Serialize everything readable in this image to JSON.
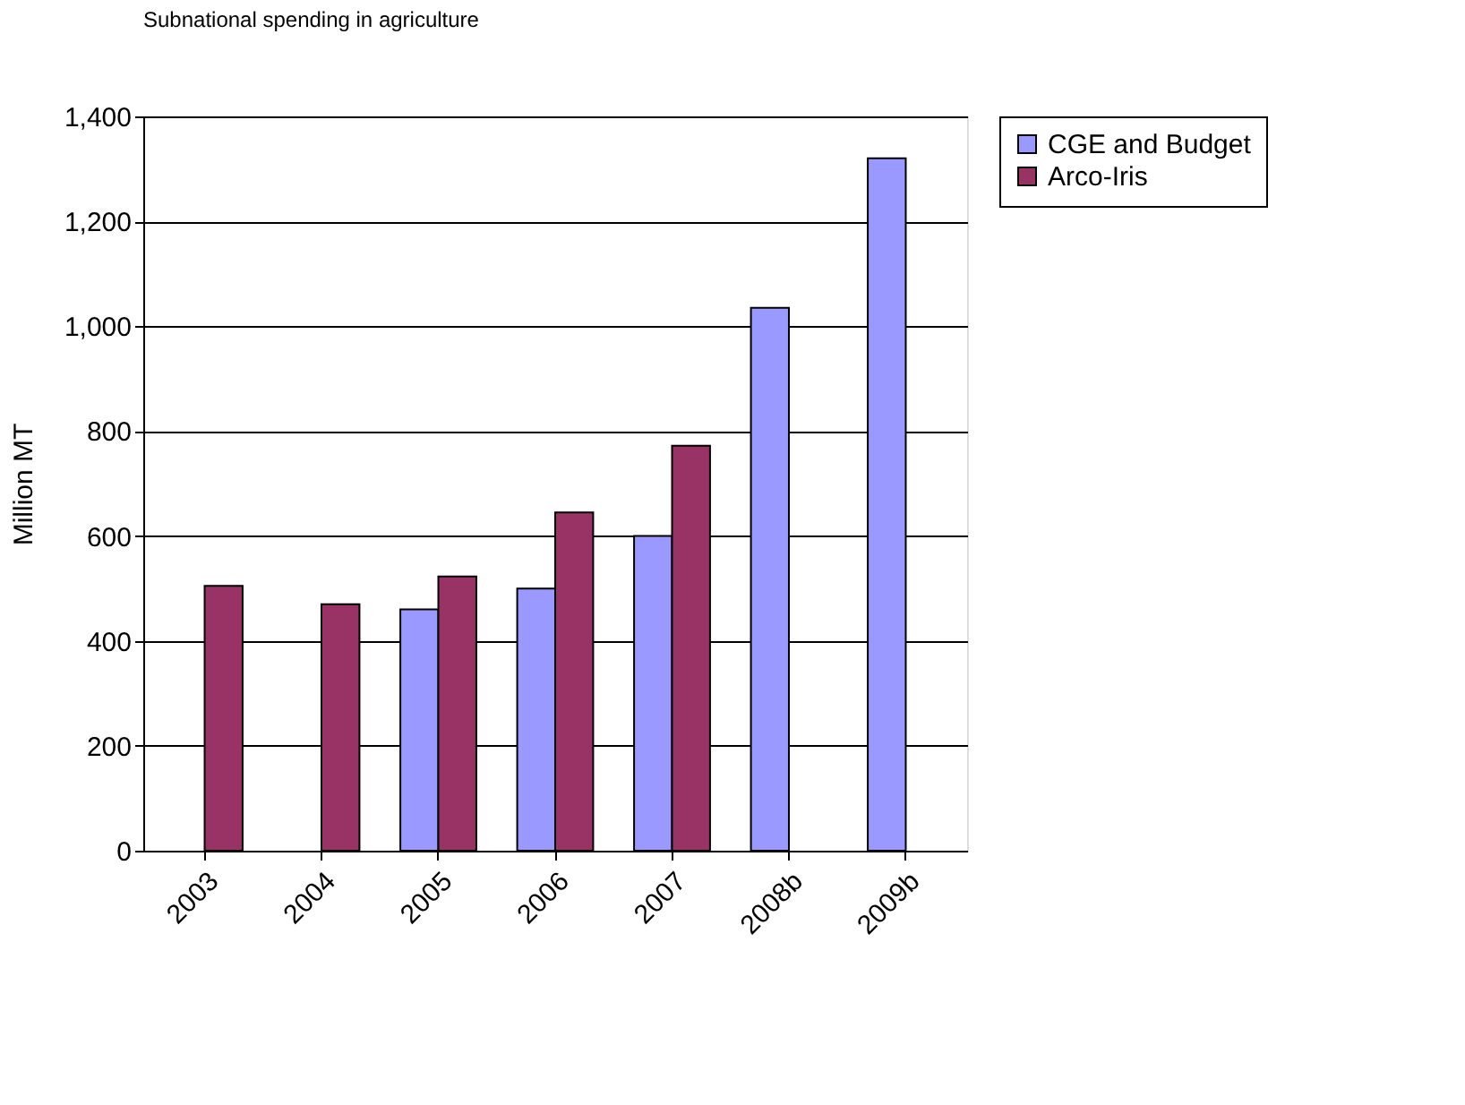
{
  "chart_data": {
    "type": "bar",
    "title": "Subnational spending in agriculture",
    "ylabel": "Million MT",
    "categories": [
      "2003",
      "2004",
      "2005",
      "2006",
      "2007",
      "2008b",
      "2009b"
    ],
    "series": [
      {
        "name": "CGE and Budget",
        "color": "#9999ff",
        "values": [
          null,
          null,
          460,
          500,
          600,
          1035,
          1320
        ]
      },
      {
        "name": "Arco-Iris",
        "color": "#993366",
        "values": [
          505,
          470,
          523,
          645,
          772,
          null,
          null
        ]
      }
    ],
    "ylim": [
      0,
      1400
    ],
    "yticks": [
      {
        "value": 0,
        "label": "0"
      },
      {
        "value": 200,
        "label": "200"
      },
      {
        "value": 400,
        "label": "400"
      },
      {
        "value": 600,
        "label": "600"
      },
      {
        "value": 800,
        "label": "800"
      },
      {
        "value": 1000,
        "label": "1,000"
      },
      {
        "value": 1200,
        "label": "1,200"
      },
      {
        "value": 1400,
        "label": "1,400"
      }
    ],
    "grid": "y",
    "legend": "right"
  }
}
